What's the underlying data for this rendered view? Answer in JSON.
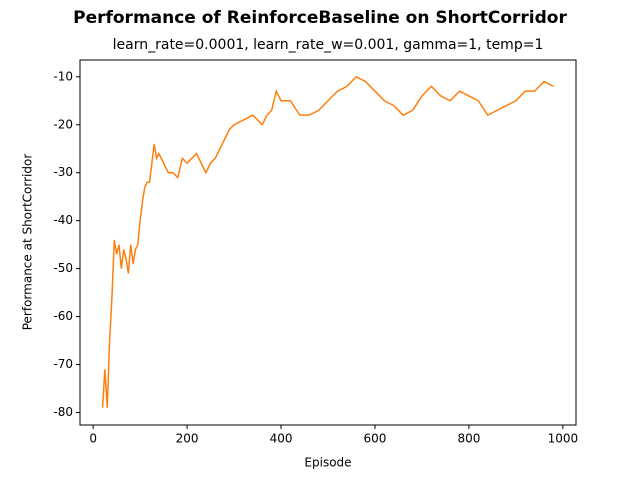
{
  "chart_data": {
    "type": "line",
    "title": "Performance of ReinforceBaseline on ShortCorridor",
    "subtitle": "learn_rate=0.0001, learn_rate_w=0.001, gamma=1, temp=1",
    "x_label": "Episode",
    "y_label": "Performance at ShortCorridor",
    "x": [
      20,
      25,
      30,
      35,
      40,
      45,
      50,
      55,
      60,
      65,
      70,
      75,
      80,
      85,
      90,
      95,
      100,
      105,
      110,
      115,
      120,
      125,
      130,
      135,
      140,
      150,
      160,
      170,
      180,
      190,
      200,
      210,
      220,
      230,
      240,
      250,
      260,
      270,
      280,
      290,
      300,
      320,
      340,
      360,
      370,
      380,
      390,
      400,
      420,
      440,
      460,
      480,
      500,
      520,
      540,
      560,
      580,
      600,
      620,
      640,
      660,
      680,
      700,
      720,
      740,
      760,
      780,
      800,
      820,
      840,
      860,
      880,
      900,
      920,
      940,
      960,
      980
    ],
    "series": [
      {
        "name": "ReinforceBaseline",
        "color": "#ff7f0e",
        "values": [
          -79,
          -71,
          -79,
          -65,
          -56,
          -44,
          -47,
          -45,
          -50,
          -46,
          -48,
          -51,
          -45,
          -49,
          -46,
          -45,
          -40,
          -36,
          -33,
          -32,
          -32,
          -28,
          -24,
          -27,
          -26,
          -28,
          -30,
          -30,
          -31,
          -27,
          -28,
          -27,
          -26,
          -28,
          -30,
          -28,
          -27,
          -25,
          -23,
          -21,
          -20,
          -19,
          -18,
          -20,
          -18,
          -17,
          -13,
          -15,
          -15,
          -18,
          -18,
          -17,
          -15,
          -13,
          -12,
          -10,
          -11,
          -13,
          -15,
          -16,
          -18,
          -17,
          -14,
          -12,
          -14,
          -15,
          -13,
          -14,
          -15,
          -18,
          -17,
          -16,
          -15,
          -13,
          -13,
          -11,
          -12
        ]
      }
    ],
    "xlim": [
      -28,
      1028
    ],
    "ylim": [
      -82.6,
      -6.5
    ],
    "xticks": [
      0,
      200,
      400,
      600,
      800,
      1000
    ],
    "yticks": [
      -80,
      -70,
      -60,
      -50,
      -40,
      -30,
      -20,
      -10
    ]
  }
}
